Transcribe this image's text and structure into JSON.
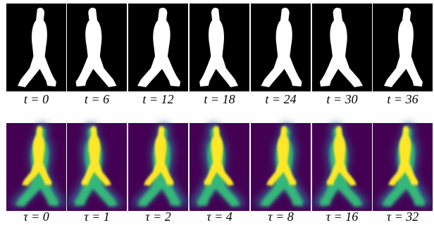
{
  "rows": [
    {
      "labels": [
        "t = 0",
        "t = 6",
        "t = 12",
        "t = 18",
        "t = 24",
        "t = 30",
        "t = 36"
      ]
    },
    {
      "labels": [
        "τ = 0",
        "τ = 1",
        "τ = 2",
        "τ = 4",
        "τ = 8",
        "τ = 16",
        "τ = 32"
      ]
    }
  ]
}
